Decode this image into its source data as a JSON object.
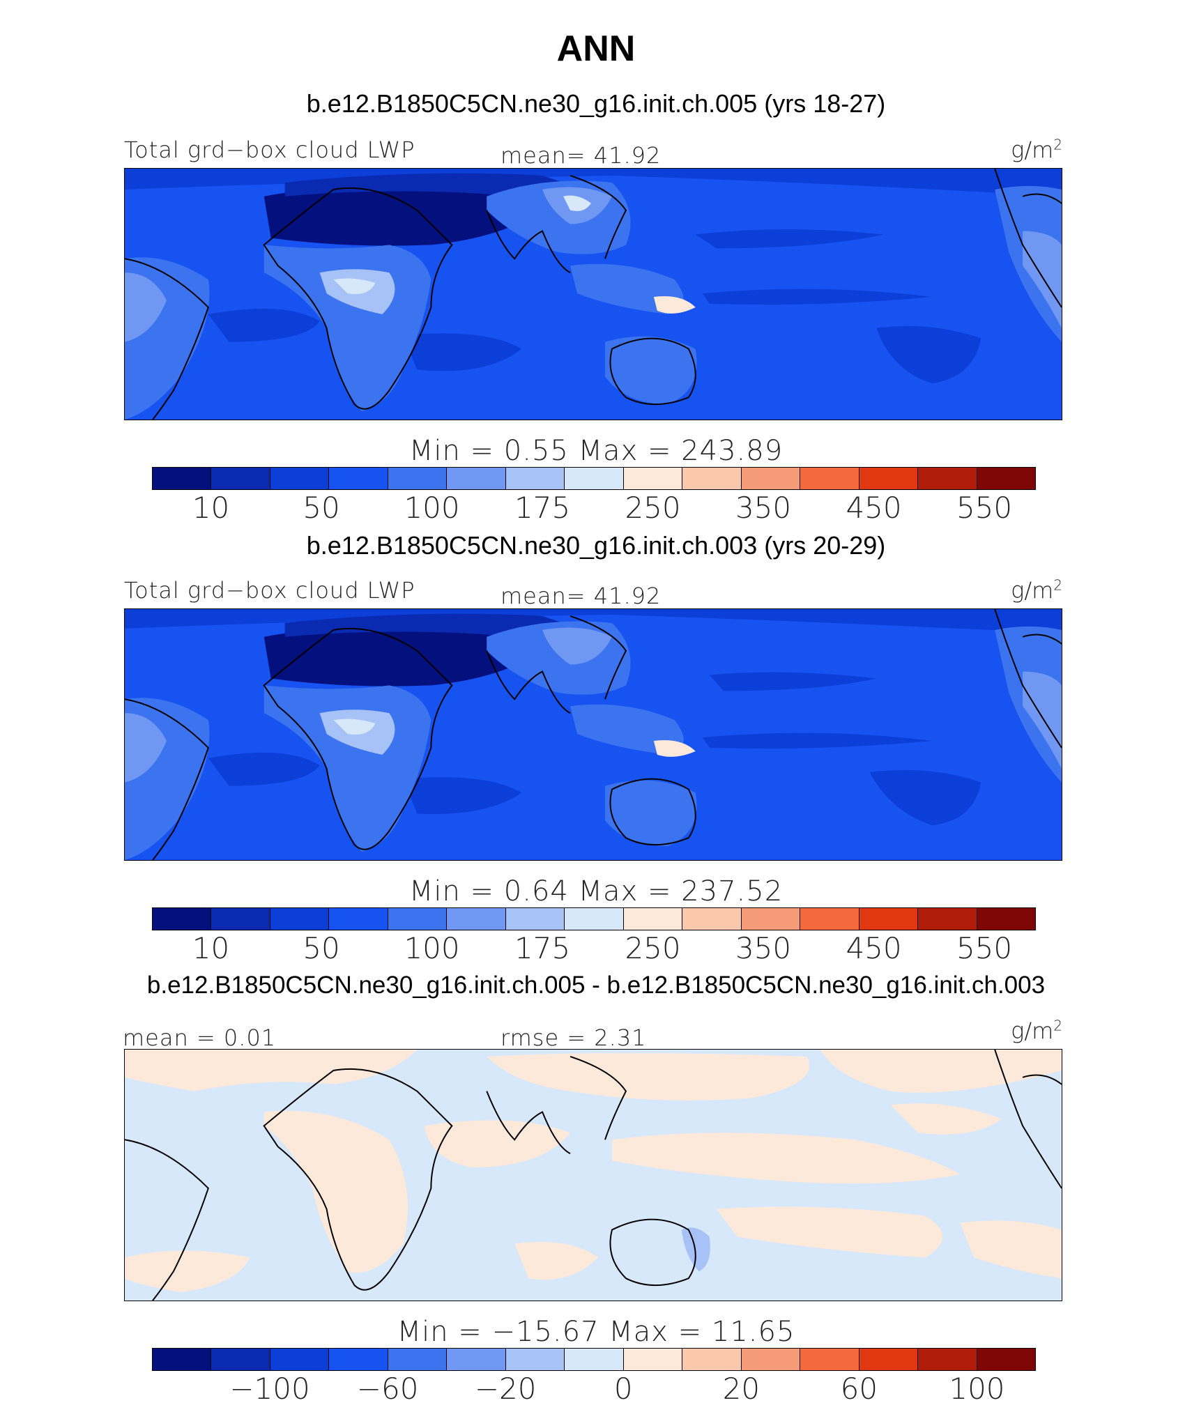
{
  "title": "ANN",
  "colorbar_colors": [
    "#05107f",
    "#0a2ab2",
    "#0c3ed8",
    "#1653f0",
    "#3c74f0",
    "#7098f2",
    "#a7c2f7",
    "#d8e8fb",
    "#fde9da",
    "#fbc8ae",
    "#f69b78",
    "#f56a3d",
    "#e23812",
    "#b01d0b",
    "#7e0706"
  ],
  "panels": [
    {
      "title": "b.e12.B1850C5CN.ne30_g16.init.ch.005 (yrs 18-27)",
      "left_label": "Total grd−box cloud LWP",
      "center_label": "mean=  41.92",
      "unit": "g/m",
      "unit_sup": "2",
      "minmax": "Min  =     0.55  Max  =  243.89",
      "ticks": [
        "10",
        "50",
        "100",
        "175",
        "250",
        "350",
        "450",
        "550"
      ]
    },
    {
      "title": "b.e12.B1850C5CN.ne30_g16.init.ch.003 (yrs 20-29)",
      "left_label": "Total grd−box cloud LWP",
      "center_label": "mean=  41.92",
      "unit": "g/m",
      "unit_sup": "2",
      "minmax": "Min  =     0.64  Max  =  237.52",
      "ticks": [
        "10",
        "50",
        "100",
        "175",
        "250",
        "350",
        "450",
        "550"
      ]
    },
    {
      "title": "b.e12.B1850C5CN.ne30_g16.init.ch.005 - b.e12.B1850C5CN.ne30_g16.init.ch.003",
      "left_label": "mean  =    0.01",
      "center_label": "rmse  =     2.31",
      "unit": "g/m",
      "unit_sup": "2",
      "minmax": "Min  =  −15.67  Max  =    11.65",
      "ticks": [
        "−100",
        "−60",
        "−20",
        "0",
        "20",
        "60",
        "100"
      ]
    }
  ]
}
